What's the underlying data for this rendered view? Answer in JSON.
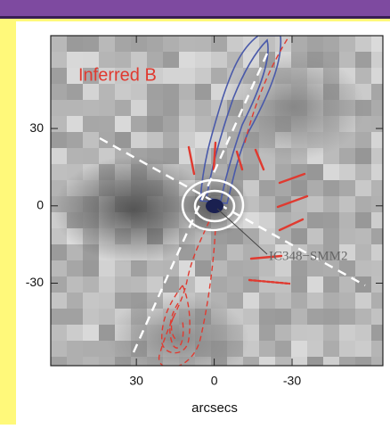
{
  "chart_data": {
    "type": "image",
    "label": "Inferred B",
    "annotation": "IC348−SMM2",
    "xlabel": "arcsecs",
    "xlim": [
      63,
      -65
    ],
    "ylim": [
      -62,
      66
    ],
    "xticks": [
      30,
      0,
      -30
    ],
    "yticks": [
      30,
      0,
      -30
    ]
  }
}
